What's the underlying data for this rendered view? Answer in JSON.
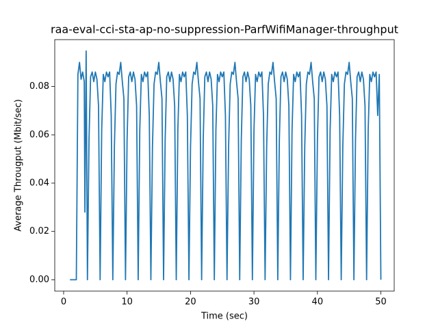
{
  "chart_data": {
    "type": "line",
    "title": "raa-eval-cci-sta-ap-no-suppression-ParfWifiManager-throughput",
    "x_label": "Time (sec)",
    "y_label": "Average Througput (Mbit/sec)",
    "xlim": [
      -1.4,
      52.1
    ],
    "ylim": [
      -0.0047,
      0.0994
    ],
    "xticks": [
      0,
      10,
      20,
      30,
      40,
      50
    ],
    "yticks": [
      {
        "value": 0,
        "label": "0.00"
      },
      {
        "value": 0.02,
        "label": "0.02"
      },
      {
        "value": 0.04,
        "label": "0.04"
      },
      {
        "value": 0.06,
        "label": "0.06"
      },
      {
        "value": 0.08,
        "label": "0.08"
      }
    ],
    "x": [
      1,
      1.25,
      1.5,
      1.75,
      2,
      2.25,
      2.5,
      2.75,
      3,
      3.25,
      3.35,
      3.55,
      3.75,
      4,
      4.25,
      4.5,
      4.75,
      5,
      5.25,
      5.5,
      5.75,
      6,
      6.25,
      6.5,
      6.75,
      7,
      7.25,
      7.5,
      7.75,
      8,
      8.25,
      8.5,
      8.75,
      9,
      9.25,
      9.5,
      9.75,
      10,
      10.25,
      10.5,
      10.75,
      11,
      11.25,
      11.5,
      11.75,
      12,
      12.25,
      12.5,
      12.75,
      13,
      13.25,
      13.5,
      13.75,
      14,
      14.25,
      14.5,
      14.75,
      15,
      15.25,
      15.5,
      15.75,
      16,
      16.25,
      16.5,
      16.75,
      17,
      17.25,
      17.5,
      17.75,
      18,
      18.25,
      18.5,
      18.75,
      19,
      19.25,
      19.5,
      19.75,
      20,
      20.25,
      20.5,
      20.75,
      21,
      21.25,
      21.5,
      21.75,
      22,
      22.25,
      22.5,
      22.75,
      23,
      23.25,
      23.5,
      23.75,
      24,
      24.25,
      24.5,
      24.75,
      25,
      25.25,
      25.5,
      25.75,
      26,
      26.25,
      26.5,
      26.75,
      27,
      27.25,
      27.5,
      27.75,
      28,
      28.25,
      28.5,
      28.75,
      29,
      29.25,
      29.5,
      29.75,
      30,
      30.25,
      30.5,
      30.75,
      31,
      31.25,
      31.5,
      31.75,
      32,
      32.25,
      32.5,
      32.75,
      33,
      33.25,
      33.5,
      33.75,
      34,
      34.25,
      34.5,
      34.75,
      35,
      35.25,
      35.5,
      35.75,
      36,
      36.25,
      36.5,
      36.75,
      37,
      37.25,
      37.5,
      37.75,
      38,
      38.25,
      38.5,
      38.75,
      39,
      39.25,
      39.5,
      39.75,
      40,
      40.25,
      40.5,
      40.75,
      41,
      41.25,
      41.5,
      41.75,
      42,
      42.25,
      42.5,
      42.75,
      43,
      43.25,
      43.5,
      43.75,
      44,
      44.25,
      44.5,
      44.75,
      45,
      45.25,
      45.5,
      45.75,
      46,
      46.25,
      46.5,
      46.75,
      47,
      47.25,
      47.5,
      47.75,
      48,
      48.25,
      48.5,
      48.75,
      49,
      49.25,
      49.5,
      49.75,
      50
    ],
    "series": [
      {
        "color": "#1f77b4",
        "values": [
          0,
          0,
          0,
          0,
          0,
          0.085,
          0.09,
          0.083,
          0.086,
          0.082,
          0.028,
          0.0947,
          0,
          0.058,
          0.084,
          0.086,
          0.082,
          0.086,
          0.083,
          0.072,
          0,
          0.062,
          0.085,
          0.082,
          0.086,
          0.084,
          0.086,
          0.068,
          0,
          0.055,
          0.081,
          0.086,
          0.085,
          0.09,
          0.082,
          0.075,
          0,
          0.058,
          0.084,
          0.086,
          0.082,
          0.086,
          0.083,
          0.072,
          0,
          0.062,
          0.085,
          0.082,
          0.086,
          0.084,
          0.086,
          0.068,
          0,
          0.055,
          0.081,
          0.086,
          0.085,
          0.09,
          0.082,
          0.075,
          0,
          0.058,
          0.084,
          0.086,
          0.082,
          0.086,
          0.083,
          0.072,
          0,
          0.062,
          0.085,
          0.082,
          0.086,
          0.084,
          0.086,
          0.068,
          0,
          0.055,
          0.081,
          0.086,
          0.085,
          0.09,
          0.082,
          0.075,
          0,
          0.058,
          0.084,
          0.086,
          0.082,
          0.086,
          0.083,
          0.072,
          0,
          0.062,
          0.085,
          0.082,
          0.086,
          0.084,
          0.086,
          0.068,
          0,
          0.055,
          0.081,
          0.086,
          0.085,
          0.09,
          0.082,
          0.075,
          0,
          0.058,
          0.084,
          0.086,
          0.082,
          0.086,
          0.083,
          0.072,
          0,
          0.062,
          0.085,
          0.082,
          0.086,
          0.084,
          0.086,
          0.068,
          0,
          0.055,
          0.081,
          0.086,
          0.085,
          0.09,
          0.082,
          0.075,
          0,
          0.058,
          0.084,
          0.086,
          0.082,
          0.086,
          0.083,
          0.072,
          0,
          0.062,
          0.085,
          0.082,
          0.086,
          0.084,
          0.086,
          0.068,
          0,
          0.055,
          0.081,
          0.086,
          0.085,
          0.09,
          0.082,
          0.075,
          0,
          0.058,
          0.084,
          0.086,
          0.082,
          0.086,
          0.083,
          0.072,
          0,
          0.062,
          0.085,
          0.082,
          0.086,
          0.084,
          0.086,
          0.068,
          0,
          0.055,
          0.081,
          0.086,
          0.085,
          0.09,
          0.082,
          0.075,
          0,
          0.058,
          0.084,
          0.086,
          0.082,
          0.086,
          0.083,
          0.072,
          0,
          0.062,
          0.085,
          0.082,
          0.086,
          0.084,
          0.086,
          0.068,
          0.085,
          0
        ]
      }
    ]
  }
}
